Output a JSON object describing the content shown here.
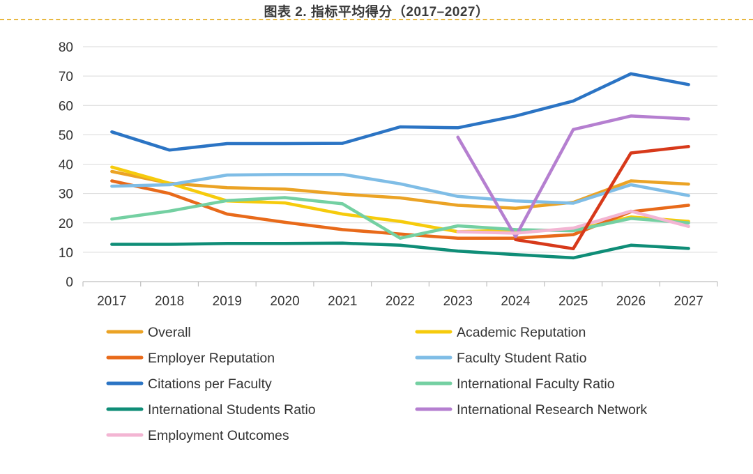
{
  "title": "图表 2. 指标平均得分（2017–2027）",
  "chart_data": {
    "type": "line",
    "title": "图表 2. 指标平均得分（2017–2027）",
    "xlabel": "",
    "ylabel": "",
    "ylim": [
      0,
      80
    ],
    "yticks": [
      0,
      10,
      20,
      30,
      40,
      50,
      60,
      70,
      80
    ],
    "grid": true,
    "legend_position": "bottom",
    "categories": [
      "2017",
      "2018",
      "2019",
      "2020",
      "2021",
      "2022",
      "2023",
      "2024",
      "2025",
      "2026",
      "2027"
    ],
    "series": [
      {
        "name": "Overall",
        "color": "#eba325",
        "values": [
          37.5,
          33.5,
          32,
          31.5,
          29.8,
          28.5,
          26,
          25,
          27,
          34.3,
          33.2
        ]
      },
      {
        "name": "Academic Reputation",
        "color": "#f6cb0c",
        "values": [
          39,
          33.5,
          27.5,
          26.8,
          23,
          20.5,
          17,
          17.5,
          17.5,
          22,
          20.5
        ]
      },
      {
        "name": "Employer Reputation",
        "color": "#e86a1a",
        "values": [
          34.3,
          30,
          23,
          20.2,
          17.7,
          16.2,
          14.8,
          14.8,
          16,
          23.8,
          26
        ]
      },
      {
        "name": "Faculty Student Ratio",
        "color": "#7fbde6",
        "values": [
          32.5,
          33,
          36.3,
          36.5,
          36.5,
          33.3,
          29,
          27.5,
          26.7,
          33,
          29.3
        ]
      },
      {
        "name": "Citations per Faculty",
        "color": "#2b74c4",
        "values": [
          51,
          44.8,
          47,
          47,
          47.1,
          52.7,
          52.4,
          56.4,
          61.5,
          70.8,
          67.1
        ]
      },
      {
        "name": "International Faculty Ratio",
        "color": "#74d0a2",
        "values": [
          21.3,
          24,
          27.6,
          28.6,
          26.5,
          14.8,
          19,
          17.7,
          17.3,
          21.5,
          20
        ]
      },
      {
        "name": "International Students Ratio",
        "color": "#0f8d77",
        "values": [
          12.7,
          12.7,
          13,
          13,
          13.1,
          12.4,
          10.4,
          9.2,
          8.1,
          12.4,
          11.3
        ]
      },
      {
        "name": "International Research Network",
        "color": "#b57fd0",
        "values": [
          null,
          null,
          null,
          null,
          null,
          null,
          49.2,
          15.3,
          51.8,
          56.4,
          55.4
        ]
      },
      {
        "name": "Employment Outcomes",
        "color": "#f3b5d3",
        "values": [
          null,
          null,
          null,
          null,
          null,
          null,
          17,
          16.5,
          18.2,
          24,
          18.8
        ]
      }
    ],
    "extra_segments": [
      {
        "color": "#d7391a",
        "x": [
          "2024",
          "2025",
          "2026",
          "2027"
        ],
        "values": [
          14.3,
          11.2,
          43.8,
          46
        ]
      }
    ]
  }
}
